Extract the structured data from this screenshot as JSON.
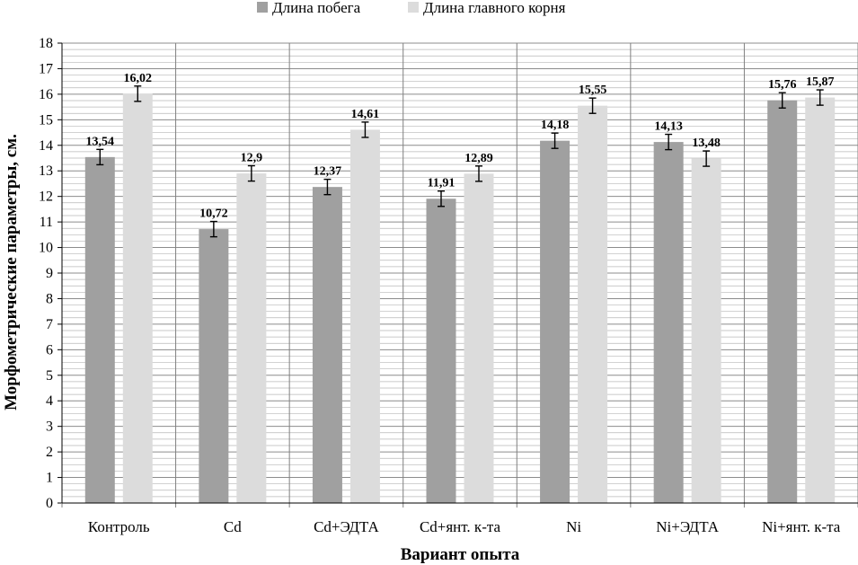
{
  "chart_data": {
    "type": "bar",
    "title": "",
    "xlabel": "Вариант опыта",
    "ylabel": "Морфометрические параметры, см.",
    "ylim": [
      0,
      18
    ],
    "ytick_step": 1,
    "grid": true,
    "legend_position": "top",
    "categories": [
      "Контроль",
      "Cd",
      "Cd+ЭДТА",
      "Cd+янт. к-та",
      "Ni",
      "Ni+ЭДТА",
      "Ni+янт. к-та"
    ],
    "series": [
      {
        "name": "Длина побега",
        "color": "#a0a0a0",
        "values": [
          13.54,
          10.72,
          12.37,
          11.91,
          14.18,
          14.13,
          15.76
        ],
        "labels": [
          "13,54",
          "10,72",
          "12,37",
          "11,91",
          "14,18",
          "14,13",
          "15,76"
        ],
        "errors": [
          0.3,
          0.3,
          0.3,
          0.3,
          0.3,
          0.3,
          0.3
        ]
      },
      {
        "name": "Длина главного корня",
        "color": "#dcdcdc",
        "values": [
          16.02,
          12.9,
          14.61,
          12.89,
          15.55,
          13.48,
          15.87
        ],
        "labels": [
          "16,02",
          "12,9",
          "14,61",
          "12,89",
          "15,55",
          "13,48",
          "15,87"
        ],
        "errors": [
          0.3,
          0.3,
          0.3,
          0.3,
          0.3,
          0.3,
          0.3
        ]
      }
    ]
  }
}
